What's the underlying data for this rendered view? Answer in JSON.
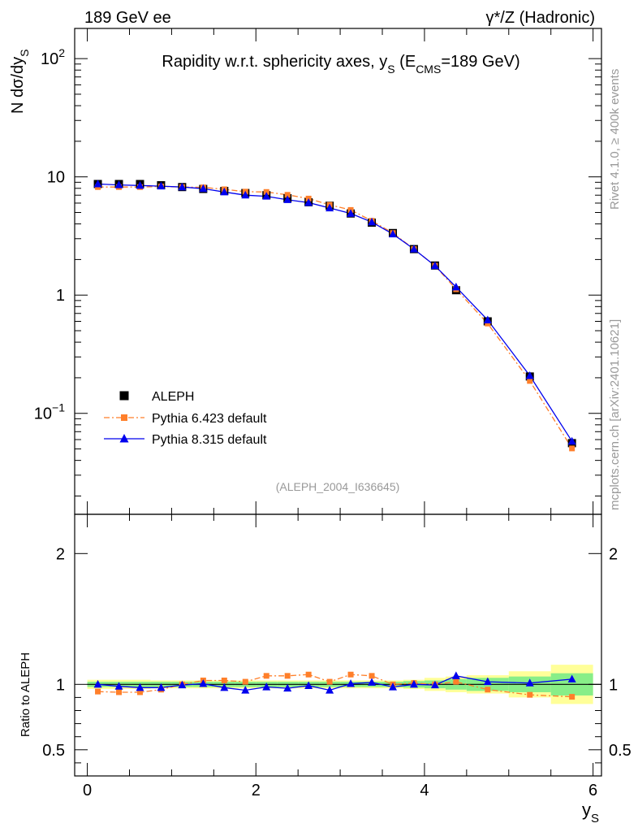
{
  "header": {
    "left": "189 GeV ee",
    "right": "γ*/Z (Hadronic)"
  },
  "side_labels": {
    "rivet": "Rivet 4.1.0, ≥ 400k events",
    "mcplots": "mcplots.cern.ch [arXiv:2401.10621]"
  },
  "watermark": "(ALEPH_2004_I636645)",
  "chart_data": {
    "type": "scatter",
    "title": "Rapidity w.r.t. sphericity axes, y_S (E_CMS=189 GeV)",
    "title_parts": {
      "main": "Rapidity w.r.t. sphericity axes, y",
      "sub_s": "S",
      "open": " (E",
      "sub_cms": "CMS",
      "close": "=189 GeV)"
    },
    "xlabel": {
      "main": "y",
      "sub": "S"
    },
    "ylabel": {
      "main": "N  dσ/dy",
      "sub": "S"
    },
    "ratio_ylabel": "Ratio to ALEPH",
    "xlim": [
      -0.15,
      6.1
    ],
    "ylim_log": [
      0.014,
      180
    ],
    "ratio_ylim": [
      0.3,
      2.3
    ],
    "x_ticks": [
      "0",
      "2",
      "4",
      "6"
    ],
    "y_ticks": [
      {
        "value": 100,
        "base": "10",
        "exp": "2"
      },
      {
        "value": 10,
        "base": "10",
        "exp": ""
      },
      {
        "value": 1,
        "base": "1",
        "exp": ""
      },
      {
        "value": 0.1,
        "base": "10",
        "exp": "−1"
      }
    ],
    "ratio_ticks": [
      "0.5",
      "1",
      "2"
    ],
    "legend_position": "lower-left",
    "x": [
      0.125,
      0.375,
      0.625,
      0.875,
      1.125,
      1.375,
      1.625,
      1.875,
      2.125,
      2.375,
      2.625,
      2.875,
      3.125,
      3.375,
      3.625,
      3.875,
      4.125,
      4.375,
      4.75,
      5.25,
      5.75
    ],
    "bin_edges": [
      0,
      0.25,
      0.5,
      0.75,
      1.0,
      1.25,
      1.5,
      1.75,
      2.0,
      2.25,
      2.5,
      2.75,
      3.0,
      3.25,
      3.5,
      3.75,
      4.0,
      4.25,
      4.5,
      5.0,
      5.5,
      6.0
    ],
    "series": [
      {
        "name": "ALEPH",
        "color": "#000000",
        "marker": "square",
        "values": [
          8.7,
          8.7,
          8.7,
          8.5,
          8.2,
          7.9,
          7.6,
          7.3,
          7.0,
          6.6,
          6.1,
          5.7,
          4.9,
          4.1,
          3.35,
          2.45,
          1.78,
          1.1,
          0.6,
          0.205,
          0.056
        ]
      },
      {
        "name": "Pythia 6.423 default",
        "color": "#ff7f2a",
        "marker": "square",
        "line": "dashdot",
        "values": [
          8.2,
          8.2,
          8.2,
          8.3,
          8.2,
          8.15,
          7.85,
          7.5,
          7.45,
          7.05,
          6.55,
          5.8,
          5.25,
          4.25,
          3.35,
          2.45,
          1.77,
          1.12,
          0.575,
          0.188,
          0.0505
        ]
      },
      {
        "name": "Pythia 8.315 default",
        "color": "#0000ee",
        "marker": "triangle",
        "line": "solid",
        "values": [
          8.7,
          8.55,
          8.45,
          8.35,
          8.2,
          7.95,
          7.45,
          7.0,
          6.85,
          6.4,
          6.05,
          5.45,
          4.9,
          4.15,
          3.28,
          2.45,
          1.77,
          1.17,
          0.615,
          0.208,
          0.058
        ]
      }
    ],
    "ratio_series": [
      {
        "name": "Pythia 6.423 default",
        "values": [
          0.945,
          0.94,
          0.94,
          0.96,
          1.0,
          1.03,
          1.03,
          1.02,
          1.065,
          1.065,
          1.075,
          1.02,
          1.075,
          1.065,
          1.0,
          1.01,
          1.0,
          1.02,
          0.96,
          0.92,
          0.905
        ]
      },
      {
        "name": "Pythia 8.315 default",
        "values": [
          1.0,
          0.985,
          0.975,
          0.975,
          0.995,
          1.005,
          0.975,
          0.955,
          0.98,
          0.97,
          0.99,
          0.955,
          1.005,
          1.015,
          0.98,
          1.0,
          0.995,
          1.065,
          1.02,
          1.01,
          1.04
        ]
      }
    ],
    "uncertainty_bands": {
      "stat_green": [
        0.02,
        0.02,
        0.02,
        0.02,
        0.02,
        0.02,
        0.02,
        0.02,
        0.02,
        0.02,
        0.02,
        0.02,
        0.02,
        0.02,
        0.02,
        0.025,
        0.03,
        0.04,
        0.05,
        0.06,
        0.085
      ],
      "total_yellow": [
        0.035,
        0.035,
        0.035,
        0.03,
        0.03,
        0.03,
        0.03,
        0.03,
        0.03,
        0.03,
        0.03,
        0.03,
        0.03,
        0.03,
        0.03,
        0.035,
        0.05,
        0.06,
        0.07,
        0.1,
        0.15
      ]
    }
  }
}
